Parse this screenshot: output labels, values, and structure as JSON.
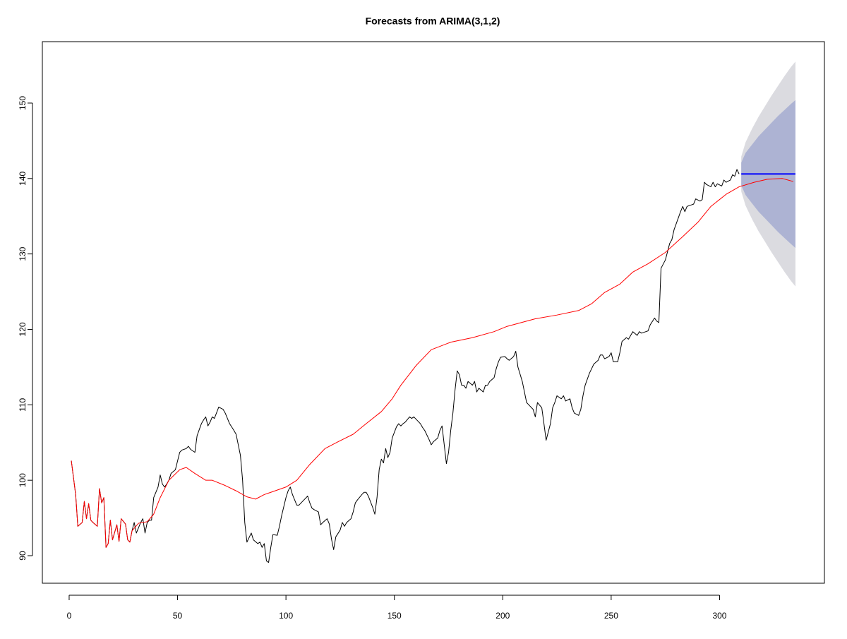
{
  "chart_data": {
    "type": "line",
    "title": "Forecasts from ARIMA(3,1,2)",
    "xlim": [
      -12.36,
      348.36
    ],
    "ylim": [
      86.35,
      158.14
    ],
    "xticks": [
      0,
      50,
      100,
      150,
      200,
      250,
      300
    ],
    "yticks": [
      90,
      100,
      110,
      120,
      130,
      140,
      150
    ],
    "bands": [
      {
        "color": "#dbdbe0",
        "x": [
          310,
          312,
          315,
          318,
          321,
          324,
          327,
          330,
          333,
          335
        ],
        "lower": [
          138.3,
          136.4,
          134.6,
          133.0,
          131.6,
          130.2,
          128.9,
          127.6,
          126.4,
          125.7
        ],
        "upper": [
          142.9,
          144.8,
          146.6,
          148.2,
          149.6,
          151.0,
          152.3,
          153.6,
          154.8,
          155.5
        ]
      },
      {
        "color": "#adb3d3",
        "x": [
          310,
          312,
          315,
          318,
          321,
          324,
          327,
          330,
          333,
          335
        ],
        "lower": [
          139.1,
          137.8,
          136.7,
          135.6,
          134.7,
          133.8,
          132.9,
          132.1,
          131.3,
          130.8
        ],
        "upper": [
          142.1,
          143.4,
          144.5,
          145.6,
          146.5,
          147.4,
          148.3,
          149.1,
          149.9,
          150.4
        ]
      }
    ],
    "series": [
      {
        "color": "#000000",
        "width": 1,
        "x": [
          1,
          3,
          4,
          6,
          7,
          8,
          9,
          10,
          11,
          13,
          14,
          15,
          16,
          17,
          18,
          19,
          20,
          22,
          23,
          24,
          26,
          27,
          28,
          29,
          30,
          31,
          33,
          34,
          35,
          36,
          37,
          38,
          39,
          41,
          42,
          43,
          44,
          45,
          46,
          47,
          49,
          51,
          52,
          54,
          55,
          56,
          58,
          59,
          60,
          61,
          62,
          63,
          64,
          65,
          66,
          67,
          69,
          71,
          72,
          74,
          76,
          77,
          78,
          79,
          80,
          81,
          82,
          84,
          85,
          87,
          88,
          89,
          90,
          91,
          92,
          93,
          94,
          96,
          97,
          98,
          100,
          101,
          102,
          103,
          105,
          106,
          107,
          109,
          110,
          111,
          112,
          113,
          115,
          116,
          117,
          119,
          120,
          121,
          122,
          123,
          125,
          126,
          127,
          128,
          130,
          131,
          132,
          133,
          135,
          136,
          137,
          138,
          140,
          141,
          142,
          143,
          144,
          145,
          146,
          147,
          148,
          149,
          151,
          152,
          153,
          154,
          155,
          157,
          158,
          159,
          161,
          162,
          163,
          164,
          166,
          167,
          168,
          170,
          171,
          172,
          173,
          174,
          175,
          176,
          177,
          178,
          179,
          180,
          181,
          182,
          183,
          184,
          186,
          187,
          188,
          189,
          191,
          192,
          193,
          194,
          196,
          197,
          198,
          199,
          201,
          202,
          203,
          205,
          206,
          207,
          209,
          210,
          211,
          212,
          214,
          215,
          216,
          218,
          219,
          220,
          222,
          223,
          224,
          225,
          227,
          228,
          229,
          231,
          232,
          233,
          235,
          236,
          237,
          238,
          240,
          241,
          242,
          244,
          245,
          246,
          247,
          249,
          250,
          251,
          253,
          254,
          255,
          257,
          258,
          259,
          260,
          262,
          263,
          264,
          266,
          267,
          268,
          270,
          271,
          272,
          273,
          275,
          277,
          278,
          279,
          280,
          282,
          283,
          284,
          285,
          287,
          288,
          289,
          291,
          292,
          293,
          294,
          296,
          297,
          298,
          299,
          301,
          302,
          303,
          305,
          306,
          307,
          308,
          309
        ],
        "values": [
          102.6,
          98.1,
          93.9,
          94.4,
          97.2,
          94.9,
          96.9,
          94.7,
          94.4,
          93.9,
          98.9,
          97.0,
          97.7,
          91.1,
          91.6,
          94.7,
          92.1,
          94.1,
          91.9,
          94.9,
          94.2,
          92.1,
          91.8,
          93.3,
          94.4,
          93.0,
          94.4,
          94.9,
          93.0,
          94.4,
          94.7,
          94.7,
          97.7,
          99.1,
          100.7,
          99.5,
          99.1,
          99.5,
          100.0,
          100.9,
          101.4,
          103.7,
          104.0,
          104.2,
          104.5,
          104.1,
          103.7,
          105.9,
          106.7,
          107.5,
          108.0,
          108.4,
          107.2,
          107.7,
          108.4,
          108.2,
          109.7,
          109.4,
          108.9,
          107.5,
          106.6,
          106.1,
          104.7,
          103.3,
          100.0,
          94.4,
          91.8,
          93.0,
          92.1,
          91.6,
          91.8,
          91.1,
          91.6,
          89.3,
          89.1,
          91.1,
          92.8,
          92.7,
          93.9,
          95.3,
          97.7,
          98.6,
          99.1,
          98.1,
          96.7,
          96.7,
          97.0,
          97.6,
          97.9,
          97.0,
          96.3,
          96.1,
          95.8,
          94.1,
          94.4,
          94.9,
          94.2,
          92.2,
          90.8,
          92.5,
          93.4,
          94.4,
          93.9,
          94.4,
          94.9,
          95.8,
          97.0,
          97.4,
          98.1,
          98.4,
          98.4,
          97.9,
          96.4,
          95.5,
          97.7,
          101.4,
          102.8,
          102.3,
          104.2,
          103.0,
          103.7,
          105.6,
          107.1,
          107.5,
          107.2,
          107.5,
          107.7,
          108.4,
          108.2,
          108.4,
          107.8,
          107.5,
          107.0,
          106.6,
          105.4,
          104.7,
          105.1,
          105.6,
          106.6,
          107.2,
          104.7,
          102.2,
          103.7,
          106.6,
          108.9,
          112.0,
          114.5,
          114.0,
          112.6,
          112.6,
          112.2,
          113.1,
          112.6,
          113.1,
          111.7,
          112.2,
          111.7,
          112.6,
          112.6,
          113.1,
          113.6,
          114.8,
          115.7,
          116.3,
          116.4,
          116.1,
          115.9,
          116.4,
          117.1,
          115.0,
          113.1,
          111.7,
          110.3,
          110.0,
          109.4,
          108.4,
          110.3,
          109.6,
          107.5,
          105.3,
          107.5,
          109.6,
          110.3,
          111.2,
          110.8,
          111.2,
          110.5,
          110.8,
          109.6,
          108.9,
          108.6,
          109.4,
          111.2,
          112.6,
          114.2,
          114.8,
          115.4,
          115.9,
          116.6,
          116.6,
          116.1,
          116.4,
          116.9,
          115.7,
          115.7,
          116.9,
          118.4,
          118.9,
          118.7,
          119.2,
          119.7,
          119.2,
          119.7,
          119.5,
          119.7,
          119.8,
          120.6,
          121.5,
          121.1,
          120.9,
          128.1,
          129.2,
          131.4,
          131.9,
          133.2,
          134.0,
          135.6,
          136.3,
          135.6,
          136.3,
          136.5,
          136.6,
          137.3,
          137.0,
          137.2,
          139.5,
          139.2,
          138.9,
          139.5,
          138.9,
          139.3,
          139.0,
          139.8,
          139.5,
          139.8,
          140.5,
          140.3,
          141.2,
          140.6
        ]
      },
      {
        "color": "#ff0000",
        "width": 1,
        "x": [
          1,
          3,
          4,
          6,
          7,
          8,
          9,
          10,
          11,
          13,
          14,
          15,
          16,
          17,
          18,
          19,
          20,
          22,
          23,
          24,
          26,
          27,
          28,
          29,
          32,
          36,
          39,
          42,
          46,
          51,
          54,
          58,
          63,
          66,
          72,
          77,
          82,
          86,
          90,
          95,
          100,
          105,
          111,
          118,
          124,
          131,
          137,
          144,
          149,
          153,
          160,
          167,
          176,
          186,
          196,
          202,
          215,
          225,
          235,
          241,
          247,
          254,
          260,
          267,
          275,
          283,
          290,
          296,
          303,
          309,
          316,
          322,
          329,
          334
        ],
        "values": [
          102.6,
          98.1,
          93.9,
          94.4,
          97.2,
          94.9,
          96.9,
          94.7,
          94.4,
          93.9,
          98.9,
          97.0,
          97.7,
          91.1,
          91.6,
          94.7,
          92.1,
          94.1,
          91.9,
          94.9,
          94.2,
          92.1,
          91.8,
          93.3,
          94.3,
          94.5,
          95.5,
          97.7,
          100.0,
          101.4,
          101.7,
          100.9,
          100.0,
          100.0,
          99.3,
          98.6,
          97.8,
          97.5,
          98.1,
          98.6,
          99.1,
          100.0,
          102.1,
          104.2,
          105.1,
          106.1,
          107.5,
          109.1,
          110.8,
          112.6,
          115.2,
          117.3,
          118.3,
          118.9,
          119.7,
          120.4,
          121.4,
          121.9,
          122.5,
          123.4,
          124.9,
          126.0,
          127.6,
          128.7,
          130.2,
          132.3,
          134.2,
          136.3,
          137.9,
          138.9,
          139.5,
          139.9,
          140.0,
          139.6
        ]
      },
      {
        "color": "#0000ff",
        "width": 2,
        "x": [
          310,
          312,
          315,
          318,
          321,
          324,
          327,
          330,
          333,
          335
        ],
        "values": [
          140.6,
          140.6,
          140.6,
          140.6,
          140.6,
          140.6,
          140.6,
          140.6,
          140.6,
          140.6
        ]
      }
    ]
  }
}
